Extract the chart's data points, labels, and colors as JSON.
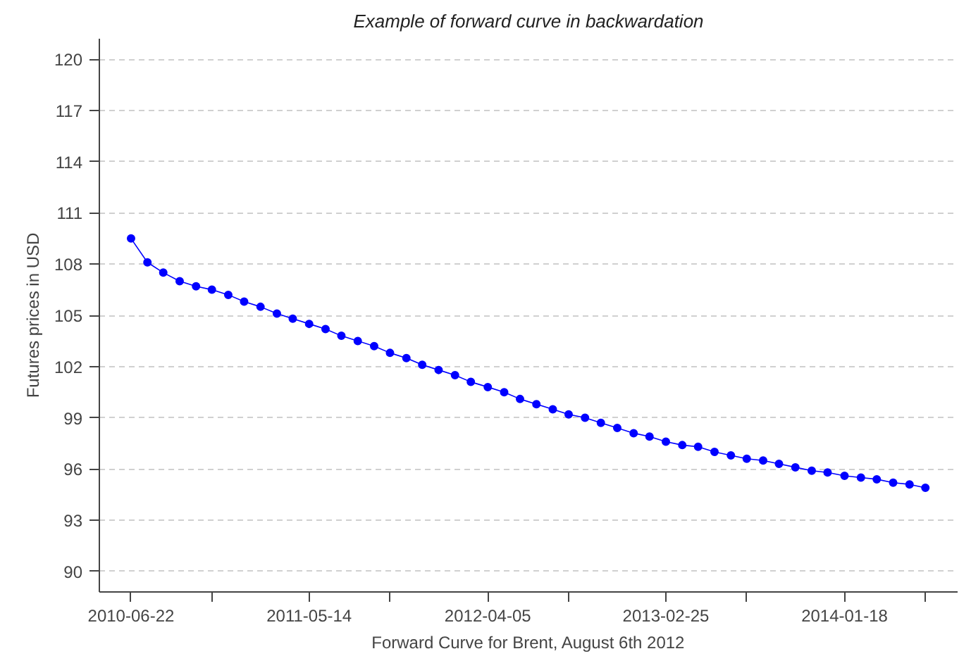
{
  "chart_data": {
    "type": "line",
    "title": "Example of forward curve in backwardation",
    "xlabel": "Forward Curve for Brent, August 6th 2012",
    "ylabel": "Futures prices in USD",
    "x": [
      "2010-06-22",
      "2010-07-22",
      "2010-08-20",
      "2010-09-19",
      "2010-10-19",
      "2010-11-17",
      "2010-12-17",
      "2011-01-15",
      "2011-02-14",
      "2011-03-16",
      "2011-04-14",
      "2011-05-14",
      "2011-06-13",
      "2011-07-12",
      "2011-08-11",
      "2011-09-10",
      "2011-10-09",
      "2011-11-08",
      "2011-12-07",
      "2012-01-06",
      "2012-02-05",
      "2012-03-05",
      "2012-04-05",
      "2012-05-05",
      "2012-06-03",
      "2012-07-03",
      "2012-08-02",
      "2012-08-31",
      "2012-09-30",
      "2012-10-29",
      "2012-11-28",
      "2012-12-28",
      "2013-01-26",
      "2013-02-25",
      "2013-03-27",
      "2013-04-25",
      "2013-05-25",
      "2013-06-24",
      "2013-07-23",
      "2013-08-22",
      "2013-09-20",
      "2013-10-20",
      "2013-11-19",
      "2013-12-18",
      "2014-01-18",
      "2014-02-17",
      "2014-03-18",
      "2014-04-17",
      "2014-05-17",
      "2014-06-15"
    ],
    "series": [
      {
        "color": "#0000ff",
        "values": [
          109.5,
          108.1,
          107.5,
          107.0,
          106.7,
          106.5,
          106.2,
          105.8,
          105.5,
          105.1,
          104.8,
          104.5,
          104.2,
          103.8,
          103.5,
          103.2,
          102.8,
          102.5,
          102.1,
          101.8,
          101.5,
          101.1,
          100.8,
          100.5,
          100.1,
          99.8,
          99.5,
          99.2,
          99.0,
          98.7,
          98.4,
          98.1,
          97.9,
          97.6,
          97.4,
          97.3,
          97.0,
          96.8,
          96.6,
          96.5,
          96.3,
          96.1,
          95.9,
          95.8,
          95.6,
          95.5,
          95.4,
          95.2,
          95.1,
          94.9
        ]
      }
    ],
    "marker": "circle",
    "line_style": "solid",
    "grid": "y",
    "xlim": [
      "2010-04-25",
      "2014-08-13"
    ],
    "ylim": [
      88.8,
      121.2
    ],
    "xticks": [
      {
        "value": "2010-06-22",
        "label": "2010-06-22"
      },
      {
        "value": "2010-11-17",
        "label": null
      },
      {
        "value": "2011-05-14",
        "label": "2011-05-14"
      },
      {
        "value": "2011-10-09",
        "label": null
      },
      {
        "value": "2012-04-05",
        "label": "2012-04-05"
      },
      {
        "value": "2012-08-31",
        "label": null
      },
      {
        "value": "2013-02-25",
        "label": "2013-02-25"
      },
      {
        "value": "2013-07-23",
        "label": null
      },
      {
        "value": "2014-01-18",
        "label": "2014-01-18"
      },
      {
        "value": "2014-06-15",
        "label": null
      }
    ],
    "yticks": [
      90,
      93,
      96,
      99,
      102,
      105,
      108,
      111,
      114,
      117,
      120
    ]
  }
}
